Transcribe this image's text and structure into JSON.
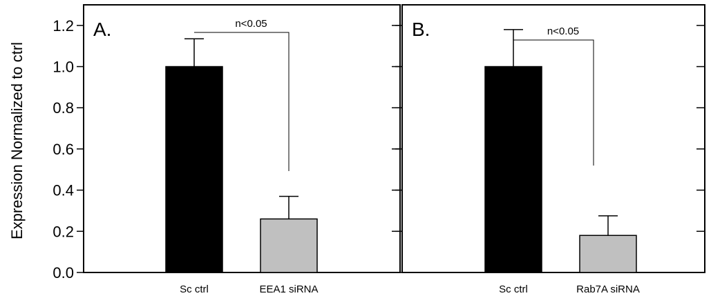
{
  "chart_data": [
    {
      "type": "bar",
      "panel_label": "A.",
      "categories": [
        "Sc ctrl",
        "EEA1 siRNA"
      ],
      "values": [
        1.0,
        0.26
      ],
      "errors": [
        0.135,
        0.11
      ],
      "colors": [
        "#000000",
        "#c0c0c0"
      ],
      "significance": "n<0.05",
      "ylabel": "Expression Normalized to ctrl",
      "ylim": [
        0,
        1.3
      ],
      "yticks": [
        "0.0",
        "0.2",
        "0.4",
        "0.6",
        "0.8",
        "1.0",
        "1.2"
      ]
    },
    {
      "type": "bar",
      "panel_label": "B.",
      "categories": [
        "Sc ctrl",
        "Rab7A siRNA"
      ],
      "values": [
        1.0,
        0.18
      ],
      "errors": [
        0.18,
        0.095
      ],
      "colors": [
        "#000000",
        "#c0c0c0"
      ],
      "significance": "n<0.05",
      "ylim": [
        0,
        1.3
      ]
    }
  ]
}
